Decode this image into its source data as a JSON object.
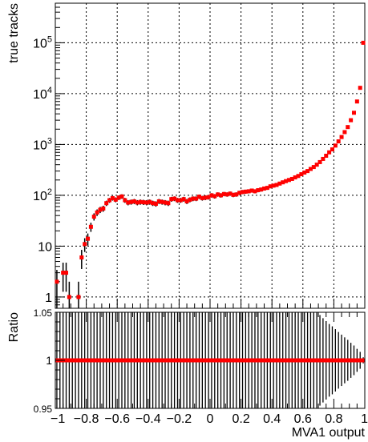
{
  "chart_data": [
    {
      "type": "scatter",
      "panel": "main",
      "ylabel": "true tracks",
      "yscale": "log",
      "xlim": [
        -1,
        1
      ],
      "ylim": [
        0.6,
        600000
      ],
      "grid": true,
      "ytick_labels": [
        "1",
        "10",
        "10^2",
        "10^3",
        "10^4",
        "10^5"
      ],
      "marker_color": "#ff0000",
      "error_color": "#000000",
      "series": [
        {
          "x": [
            -0.99,
            -0.97,
            -0.95,
            -0.93,
            -0.91,
            -0.89,
            -0.87,
            -0.85,
            -0.83,
            -0.81,
            -0.79,
            -0.77,
            -0.75,
            -0.73,
            -0.71,
            -0.69,
            -0.67,
            -0.65,
            -0.63,
            -0.61,
            -0.59,
            -0.57,
            -0.55,
            -0.53,
            -0.51,
            -0.49,
            -0.47,
            -0.45,
            -0.43,
            -0.41,
            -0.39,
            -0.37,
            -0.35,
            -0.33,
            -0.31,
            -0.29,
            -0.27,
            -0.25,
            -0.23,
            -0.21,
            -0.19,
            -0.17,
            -0.15,
            -0.13,
            -0.11,
            -0.09,
            -0.07,
            -0.05,
            -0.03,
            -0.01,
            0.01,
            0.03,
            0.05,
            0.07,
            0.09,
            0.11,
            0.13,
            0.15,
            0.17,
            0.19,
            0.21,
            0.23,
            0.25,
            0.27,
            0.29,
            0.31,
            0.33,
            0.35,
            0.37,
            0.39,
            0.41,
            0.43,
            0.45,
            0.47,
            0.49,
            0.51,
            0.53,
            0.55,
            0.57,
            0.59,
            0.61,
            0.63,
            0.65,
            0.67,
            0.69,
            0.71,
            0.73,
            0.75,
            0.77,
            0.79,
            0.81,
            0.83,
            0.85,
            0.87,
            0.89,
            0.91,
            0.93,
            0.95,
            0.97,
            0.99
          ],
          "y": [
            2,
            0,
            3,
            3,
            1,
            0,
            0,
            1,
            6,
            11,
            14,
            24,
            38,
            46,
            52,
            55,
            70,
            80,
            88,
            82,
            90,
            95,
            80,
            72,
            74,
            76,
            72,
            74,
            73,
            72,
            74,
            70,
            68,
            76,
            74,
            72,
            70,
            84,
            86,
            80,
            80,
            84,
            76,
            82,
            86,
            86,
            94,
            88,
            90,
            92,
            100,
            96,
            104,
            100,
            106,
            104,
            108,
            102,
            104,
            112,
            116,
            118,
            120,
            124,
            120,
            126,
            130,
            136,
            140,
            150,
            155,
            160,
            170,
            180,
            190,
            200,
            210,
            225,
            240,
            260,
            280,
            300,
            330,
            360,
            400,
            450,
            520,
            600,
            700,
            800,
            950,
            1150,
            1400,
            1750,
            2200,
            3000,
            4200,
            7000,
            13000,
            100000
          ]
        }
      ]
    },
    {
      "type": "scatter",
      "panel": "ratio",
      "xlabel": "MVA1 output",
      "ylabel": "Ratio",
      "xlim": [
        -1,
        1
      ],
      "ylim": [
        0.95,
        1.05
      ],
      "ytick_labels": [
        "0.95",
        "1",
        "1.05"
      ],
      "xtick_labels": [
        "−1",
        "−0.8",
        "−0.6",
        "−0.4",
        "−0.2",
        "0",
        "0.2",
        "0.4",
        "0.6",
        "0.8",
        "1"
      ],
      "ratio_value": 1.0
    }
  ]
}
